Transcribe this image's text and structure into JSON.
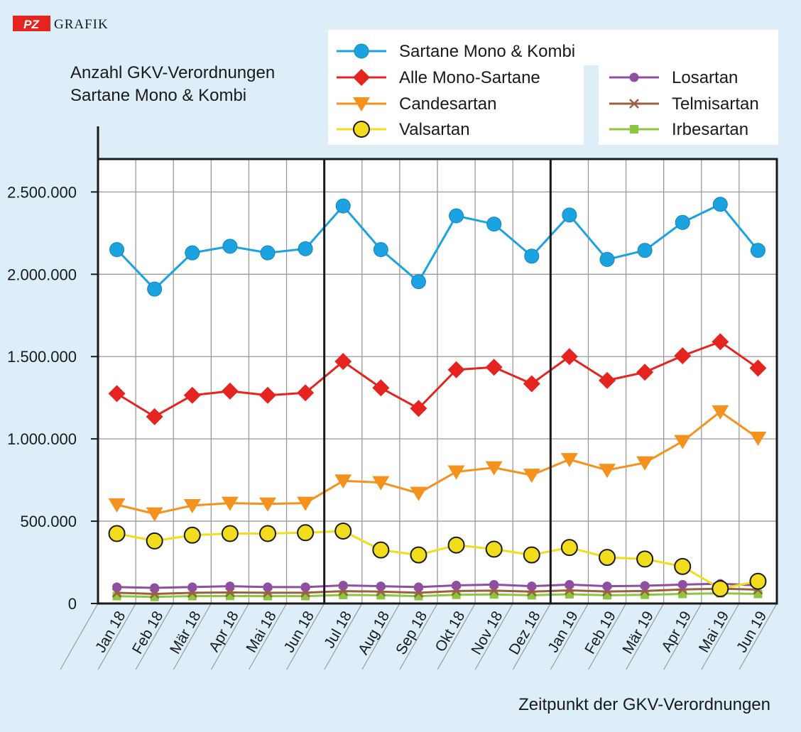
{
  "brand": {
    "badge": "PZ",
    "label": "GRAFIK"
  },
  "chart_data": {
    "type": "line",
    "title_lines": [
      "Anzahl GKV-Verordnungen",
      "Sartane Mono & Kombi"
    ],
    "xlabel": "Zeitpunkt der GKV-Verordnungen",
    "ylabel": "",
    "ylim": [
      0,
      2700000
    ],
    "yticks": [
      0,
      500000,
      1000000,
      1500000,
      2000000,
      2500000
    ],
    "ytick_labels": [
      "0",
      "500.000",
      "1.000.000",
      "1.500.000",
      "2.000.000",
      "2.500.000"
    ],
    "grid": true,
    "legend_position": "top-right",
    "categories": [
      "Jan 18",
      "Feb 18",
      "Mär 18",
      "Apr 18",
      "Mai 18",
      "Jun 18",
      "Jul 18",
      "Aug 18",
      "Sep 18",
      "Okt 18",
      "Nov 18",
      "Dez 18",
      "Jan 19",
      "Feb 19",
      "Mär 19",
      "Apr 19",
      "Mai 19",
      "Jun 19"
    ],
    "period_separators_after": [
      "Jun 18",
      "Dez 18"
    ],
    "series": [
      {
        "name": "Sartane Mono & Kombi",
        "color": "#1aa3e0",
        "marker": "circle",
        "values": [
          2150000,
          1910000,
          2130000,
          2170000,
          2130000,
          2155000,
          2415000,
          2150000,
          1955000,
          2355000,
          2305000,
          2110000,
          2360000,
          2090000,
          2145000,
          2315000,
          2425000,
          2145000
        ]
      },
      {
        "name": "Alle Mono-Sartane",
        "color": "#e52420",
        "marker": "diamond",
        "values": [
          1275000,
          1135000,
          1265000,
          1290000,
          1265000,
          1280000,
          1470000,
          1310000,
          1185000,
          1420000,
          1435000,
          1335000,
          1500000,
          1355000,
          1405000,
          1505000,
          1590000,
          1430000
        ]
      },
      {
        "name": "Candesartan",
        "color": "#f5921e",
        "marker": "triangle-down",
        "values": [
          600000,
          545000,
          595000,
          610000,
          605000,
          610000,
          745000,
          735000,
          670000,
          800000,
          825000,
          780000,
          875000,
          810000,
          855000,
          985000,
          1165000,
          1005000
        ]
      },
      {
        "name": "Valsartan",
        "color": "#f2dd1c",
        "marker": "circle-yellow",
        "values": [
          425000,
          380000,
          415000,
          425000,
          425000,
          430000,
          440000,
          325000,
          295000,
          355000,
          330000,
          295000,
          340000,
          280000,
          270000,
          225000,
          90000,
          135000
        ]
      },
      {
        "name": "Losartan",
        "color": "#8e4fa2",
        "marker": "circle-small",
        "values": [
          100000,
          95000,
          100000,
          105000,
          100000,
          100000,
          110000,
          105000,
          100000,
          110000,
          115000,
          105000,
          115000,
          105000,
          108000,
          115000,
          120000,
          110000
        ]
      },
      {
        "name": "Telmisartan",
        "color": "#9b5f43",
        "marker": "x",
        "values": [
          65000,
          58000,
          65000,
          67000,
          65000,
          66000,
          75000,
          72000,
          65000,
          76000,
          78000,
          72000,
          80000,
          73000,
          76000,
          85000,
          90000,
          84000
        ]
      },
      {
        "name": "Irbesartan",
        "color": "#8cc63f",
        "marker": "square",
        "values": [
          45000,
          40000,
          45000,
          46000,
          45000,
          45000,
          52000,
          50000,
          45000,
          53000,
          55000,
          50000,
          56000,
          50000,
          53000,
          58000,
          62000,
          58000
        ]
      }
    ]
  }
}
